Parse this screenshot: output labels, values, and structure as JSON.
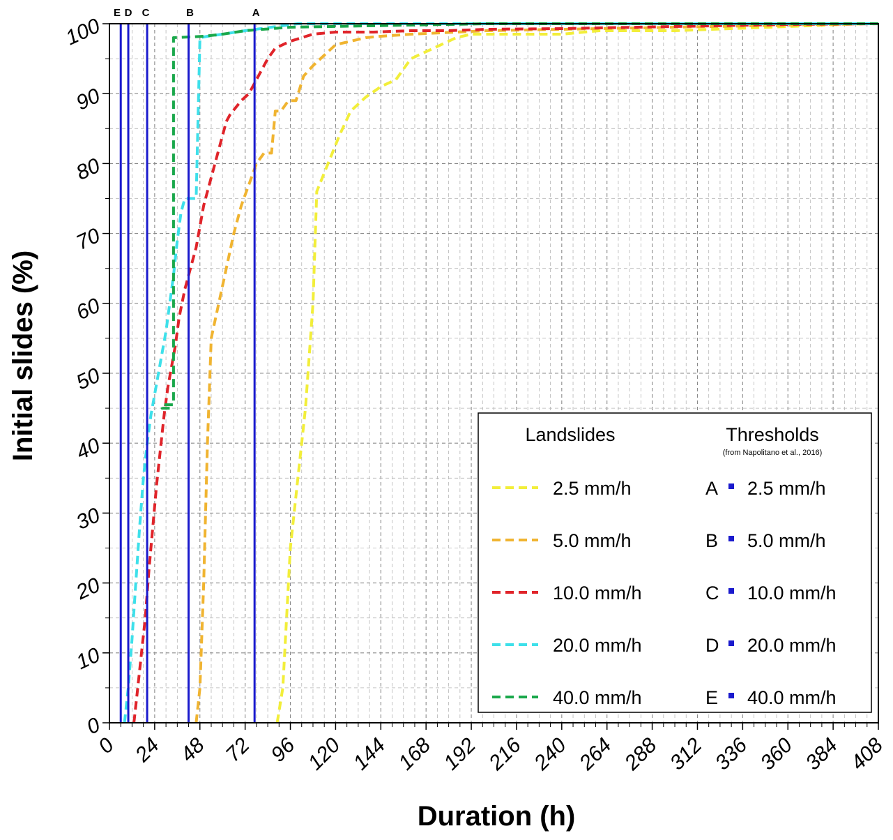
{
  "chart_data": {
    "type": "line",
    "xlabel": "Duration (h)",
    "ylabel": "Initial slides (%)",
    "xlim": [
      0,
      408
    ],
    "ylim": [
      0,
      100
    ],
    "xticks": [
      0,
      24,
      48,
      72,
      96,
      120,
      144,
      168,
      192,
      216,
      240,
      264,
      288,
      312,
      336,
      360,
      384,
      408
    ],
    "yticks": [
      0,
      10,
      20,
      30,
      40,
      50,
      60,
      70,
      80,
      90,
      100
    ],
    "grid": true,
    "legend": {
      "landslides_title": "Landslides",
      "thresholds_title": "Thresholds",
      "thresholds_subtitle": "(from Napolitano et al., 2016)",
      "position": "bottom-right"
    },
    "series": [
      {
        "name": "2.5 mm/h",
        "color": "#f2ee3a",
        "x": [
          89,
          92,
          96,
          100,
          104,
          108,
          110,
          116,
          122,
          128,
          136,
          144,
          152,
          160,
          168,
          176,
          184,
          192,
          200,
          220,
          240,
          260,
          280,
          300,
          320,
          340,
          360,
          380,
          400,
          408
        ],
        "y": [
          0,
          5,
          25,
          35,
          45,
          60,
          76,
          80,
          84,
          87.5,
          89.5,
          91,
          92,
          95,
          96,
          97,
          98,
          98.5,
          98.5,
          98.5,
          98.5,
          99,
          99,
          99,
          99.2,
          99.4,
          99.6,
          99.8,
          100,
          100
        ]
      },
      {
        "name": "5.0 mm/h",
        "color": "#f0b431",
        "x": [
          46,
          48,
          50,
          52,
          54,
          58,
          62,
          66,
          70,
          74,
          78,
          82,
          86,
          88,
          91,
          95,
          99,
          103,
          108,
          114,
          120,
          128,
          136,
          144,
          160,
          176,
          200,
          240,
          280,
          320,
          360,
          400,
          408
        ],
        "y": [
          0,
          5,
          20,
          40,
          55,
          60,
          65,
          70,
          74,
          77,
          80,
          81.5,
          81.5,
          87.5,
          87.5,
          89,
          89,
          92.5,
          94,
          95.5,
          97,
          97.5,
          98,
          98.2,
          98.5,
          98.7,
          99,
          99.2,
          99.4,
          99.6,
          99.8,
          100,
          100
        ]
      },
      {
        "name": "10.0 mm/h",
        "color": "#e0242a",
        "x": [
          13,
          15,
          17,
          19,
          21,
          23,
          25,
          27,
          29,
          31,
          33,
          35,
          37,
          40,
          43,
          46,
          48,
          50,
          54,
          58,
          62,
          64,
          70,
          74,
          76,
          82,
          84,
          88,
          92,
          96,
          102,
          108,
          120,
          140,
          160,
          180,
          200,
          240,
          280,
          320,
          360,
          408
        ],
        "y": [
          0,
          5,
          10,
          15,
          22,
          28,
          34,
          39,
          44,
          48,
          51,
          54,
          58,
          62,
          65,
          68,
          71,
          74,
          78,
          82,
          86,
          87,
          89,
          90,
          91,
          94,
          95,
          96.5,
          97,
          97.5,
          98,
          98.5,
          98.8,
          98.8,
          99,
          99,
          99.2,
          99.3,
          99.5,
          99.7,
          99.9,
          100
        ]
      },
      {
        "name": "20.0 mm/h",
        "color": "#3ee0ea",
        "x": [
          8,
          10,
          12,
          14,
          16,
          18,
          20,
          22,
          24,
          26,
          28,
          30,
          32,
          34,
          36,
          38,
          40,
          42,
          46,
          48,
          52,
          60,
          72,
          100,
          200,
          408
        ],
        "y": [
          0,
          5,
          12,
          20,
          28,
          35,
          40,
          44,
          47,
          50,
          53,
          56,
          60,
          64,
          69,
          73,
          75,
          75,
          75,
          98,
          98.2,
          98.5,
          99,
          100,
          100,
          100
        ]
      },
      {
        "name": "40.0 mm/h",
        "color": "#1aa84b",
        "x": [
          32,
          32,
          28,
          28,
          34,
          34,
          50,
          60,
          72,
          96,
          200,
          408
        ],
        "y": [
          45,
          45,
          45,
          45.5,
          45.5,
          98,
          98.2,
          98.5,
          99,
          99.5,
          100,
          100
        ]
      }
    ],
    "thresholds": [
      {
        "label": "A",
        "value": "2.5 mm/h",
        "x": 77
      },
      {
        "label": "B",
        "value": "5.0 mm/h",
        "x": 42
      },
      {
        "label": "C",
        "value": "10.0 mm/h",
        "x": 20
      },
      {
        "label": "D",
        "value": "20.0 mm/h",
        "x": 10
      },
      {
        "label": "E",
        "value": "40.0 mm/h",
        "x": 6
      }
    ],
    "threshold_color": "#1a1acd"
  }
}
